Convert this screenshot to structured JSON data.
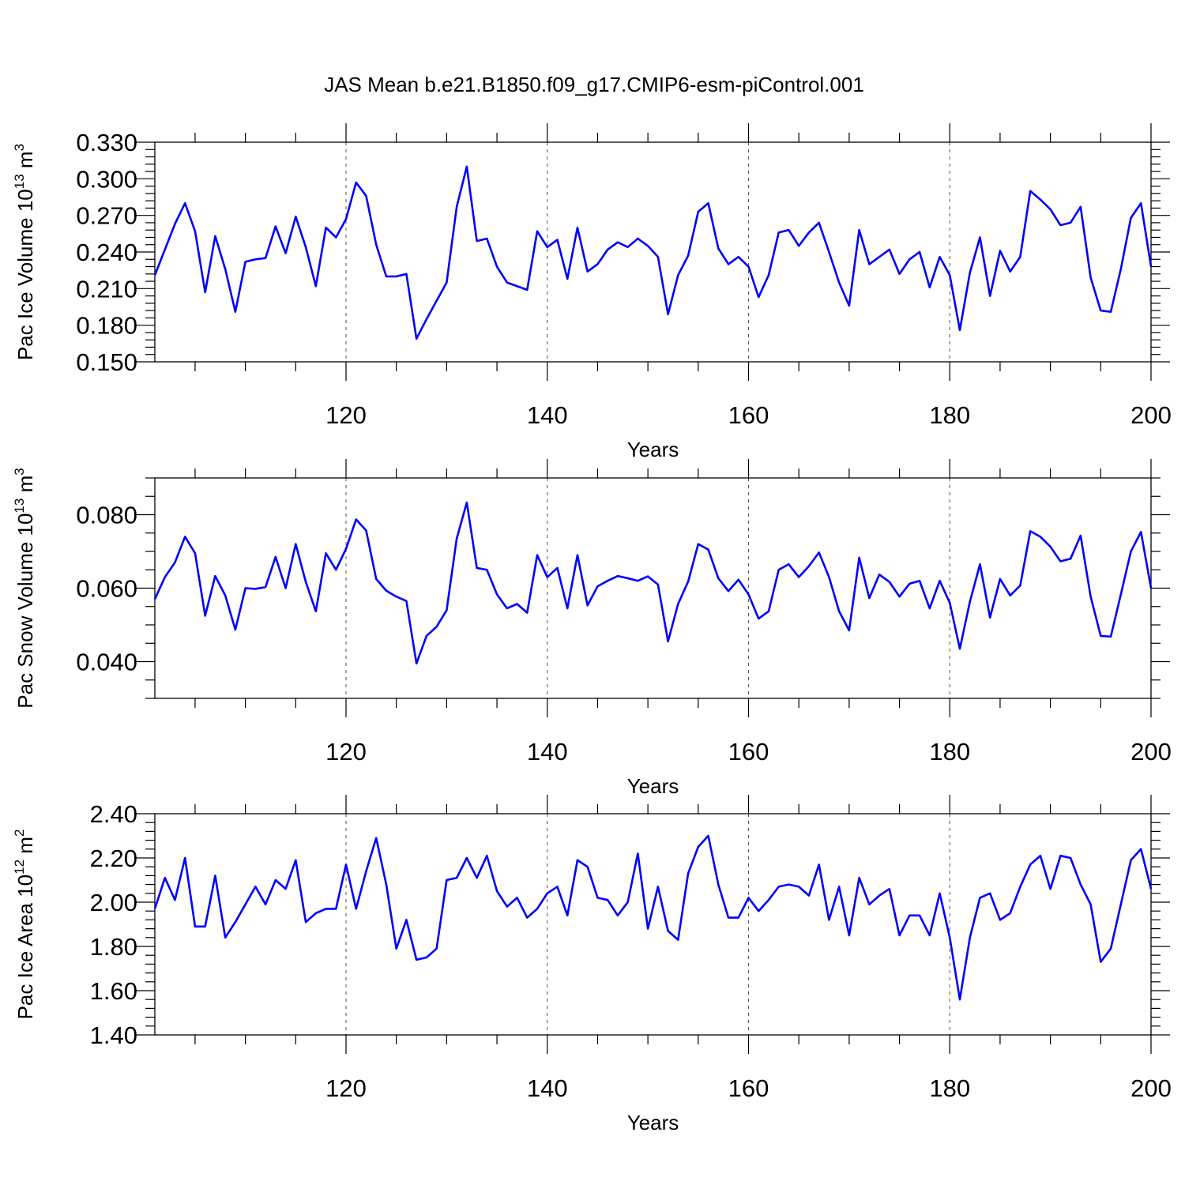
{
  "title": "JAS Mean b.e21.B1850.f09_g17.CMIP6-esm-piControl.001",
  "colors": {
    "line": "#0000ff",
    "axis": "#000000",
    "grid": "#555555"
  },
  "chart_data": [
    {
      "type": "line",
      "ylabel_main": "Pac Ice Volume 10",
      "ylabel_exp": "13",
      "ylabel_unit": " m",
      "ylabel_unit_exp": "3",
      "xlabel": "Years",
      "xlim": [
        101,
        200
      ],
      "ylim": [
        0.15,
        0.33
      ],
      "xticks": [
        120,
        140,
        160,
        180,
        200
      ],
      "xtick_labels": [
        "120",
        "140",
        "160",
        "180",
        "200"
      ],
      "yticks": [
        0.15,
        0.18,
        0.21,
        0.24,
        0.27,
        0.3,
        0.33
      ],
      "ytick_labels": [
        "0.150",
        "0.180",
        "0.210",
        "0.240",
        "0.270",
        "0.300",
        "0.330"
      ],
      "grid": "vertical dashed at x ticks",
      "x_start": 101,
      "values": [
        0.221,
        0.242,
        0.263,
        0.28,
        0.257,
        0.207,
        0.253,
        0.226,
        0.191,
        0.232,
        0.234,
        0.235,
        0.261,
        0.239,
        0.269,
        0.244,
        0.212,
        0.26,
        0.252,
        0.267,
        0.297,
        0.286,
        0.246,
        0.22,
        0.22,
        0.222,
        0.169,
        0.185,
        0.2,
        0.215,
        0.277,
        0.31,
        0.249,
        0.251,
        0.228,
        0.215,
        0.212,
        0.209,
        0.257,
        0.244,
        0.25,
        0.218,
        0.26,
        0.224,
        0.23,
        0.242,
        0.248,
        0.244,
        0.251,
        0.245,
        0.236,
        0.189,
        0.221,
        0.237,
        0.273,
        0.28,
        0.243,
        0.23,
        0.236,
        0.228,
        0.203,
        0.221,
        0.256,
        0.258,
        0.245,
        0.256,
        0.264,
        0.24,
        0.215,
        0.196,
        0.258,
        0.23,
        0.236,
        0.242,
        0.222,
        0.234,
        0.24,
        0.211,
        0.236,
        0.221,
        0.176,
        0.223,
        0.252,
        0.204,
        0.241,
        0.224,
        0.236,
        0.29,
        0.283,
        0.275,
        0.262,
        0.264,
        0.277,
        0.219,
        0.192,
        0.191,
        0.226,
        0.268,
        0.28,
        0.228
      ]
    },
    {
      "type": "line",
      "ylabel_main": "Pac Snow Volume 10",
      "ylabel_exp": "13",
      "ylabel_unit": " m",
      "ylabel_unit_exp": "3",
      "xlabel": "Years",
      "xlim": [
        101,
        200
      ],
      "ylim": [
        0.03,
        0.09
      ],
      "xticks": [
        120,
        140,
        160,
        180,
        200
      ],
      "xtick_labels": [
        "120",
        "140",
        "160",
        "180",
        "200"
      ],
      "yticks": [
        0.04,
        0.06,
        0.08
      ],
      "ytick_labels": [
        "0.040",
        "0.060",
        "0.080"
      ],
      "minor_yticks": [
        0.03,
        0.035,
        0.045,
        0.05,
        0.055,
        0.065,
        0.07,
        0.075,
        0.085,
        0.09
      ],
      "grid": "vertical dashed at x ticks",
      "x_start": 101,
      "values": [
        0.057,
        0.063,
        0.067,
        0.074,
        0.0695,
        0.0525,
        0.0633,
        0.058,
        0.0487,
        0.06,
        0.0598,
        0.0603,
        0.0685,
        0.06,
        0.072,
        0.0617,
        0.0537,
        0.0695,
        0.065,
        0.0707,
        0.0787,
        0.0757,
        0.0625,
        0.0593,
        0.0577,
        0.0565,
        0.0395,
        0.047,
        0.0495,
        0.054,
        0.0735,
        0.0833,
        0.0655,
        0.065,
        0.0583,
        0.0545,
        0.0557,
        0.0533,
        0.069,
        0.063,
        0.0655,
        0.0545,
        0.069,
        0.0553,
        0.0605,
        0.062,
        0.0633,
        0.0627,
        0.062,
        0.0632,
        0.061,
        0.0455,
        0.0557,
        0.0618,
        0.072,
        0.0705,
        0.0627,
        0.0592,
        0.0623,
        0.0583,
        0.0517,
        0.0537,
        0.065,
        0.0665,
        0.063,
        0.066,
        0.0697,
        0.063,
        0.0537,
        0.0485,
        0.0683,
        0.0573,
        0.0637,
        0.0617,
        0.0577,
        0.0612,
        0.062,
        0.0545,
        0.062,
        0.056,
        0.0435,
        0.0563,
        0.0665,
        0.052,
        0.0625,
        0.058,
        0.0607,
        0.0755,
        0.074,
        0.0713,
        0.0673,
        0.068,
        0.0743,
        0.0577,
        0.047,
        0.0468,
        0.0583,
        0.07,
        0.0753,
        0.06
      ]
    },
    {
      "type": "line",
      "ylabel_main": "Pac Ice Area 10",
      "ylabel_exp": "12",
      "ylabel_unit": " m",
      "ylabel_unit_exp": "2",
      "xlabel": "Years",
      "xlim": [
        101,
        200
      ],
      "ylim": [
        1.4,
        2.4
      ],
      "xticks": [
        120,
        140,
        160,
        180,
        200
      ],
      "xtick_labels": [
        "120",
        "140",
        "160",
        "180",
        "200"
      ],
      "yticks": [
        1.4,
        1.6,
        1.8,
        2.0,
        2.2,
        2.4
      ],
      "ytick_labels": [
        "1.40",
        "1.60",
        "1.80",
        "2.00",
        "2.20",
        "2.40"
      ],
      "grid": "vertical dashed at x ticks",
      "x_start": 101,
      "values": [
        1.97,
        2.11,
        2.01,
        2.2,
        1.89,
        1.89,
        2.12,
        1.84,
        1.91,
        1.99,
        2.07,
        1.99,
        2.1,
        2.06,
        2.19,
        1.91,
        1.95,
        1.97,
        1.97,
        2.17,
        1.97,
        2.14,
        2.29,
        2.08,
        1.79,
        1.92,
        1.74,
        1.75,
        1.79,
        2.1,
        2.11,
        2.2,
        2.11,
        2.21,
        2.05,
        1.98,
        2.02,
        1.93,
        1.97,
        2.04,
        2.07,
        1.94,
        2.19,
        2.16,
        2.02,
        2.01,
        1.94,
        2.0,
        2.22,
        1.88,
        2.07,
        1.87,
        1.83,
        2.13,
        2.25,
        2.3,
        2.08,
        1.93,
        1.93,
        2.02,
        1.96,
        2.01,
        2.07,
        2.08,
        2.07,
        2.03,
        2.17,
        1.92,
        2.07,
        1.85,
        2.11,
        1.99,
        2.03,
        2.06,
        1.85,
        1.94,
        1.94,
        1.85,
        2.04,
        1.84,
        1.56,
        1.84,
        2.02,
        2.04,
        1.92,
        1.95,
        2.07,
        2.17,
        2.21,
        2.06,
        2.21,
        2.2,
        2.08,
        1.99,
        1.73,
        1.79,
        1.99,
        2.19,
        2.24,
        2.06
      ]
    }
  ]
}
